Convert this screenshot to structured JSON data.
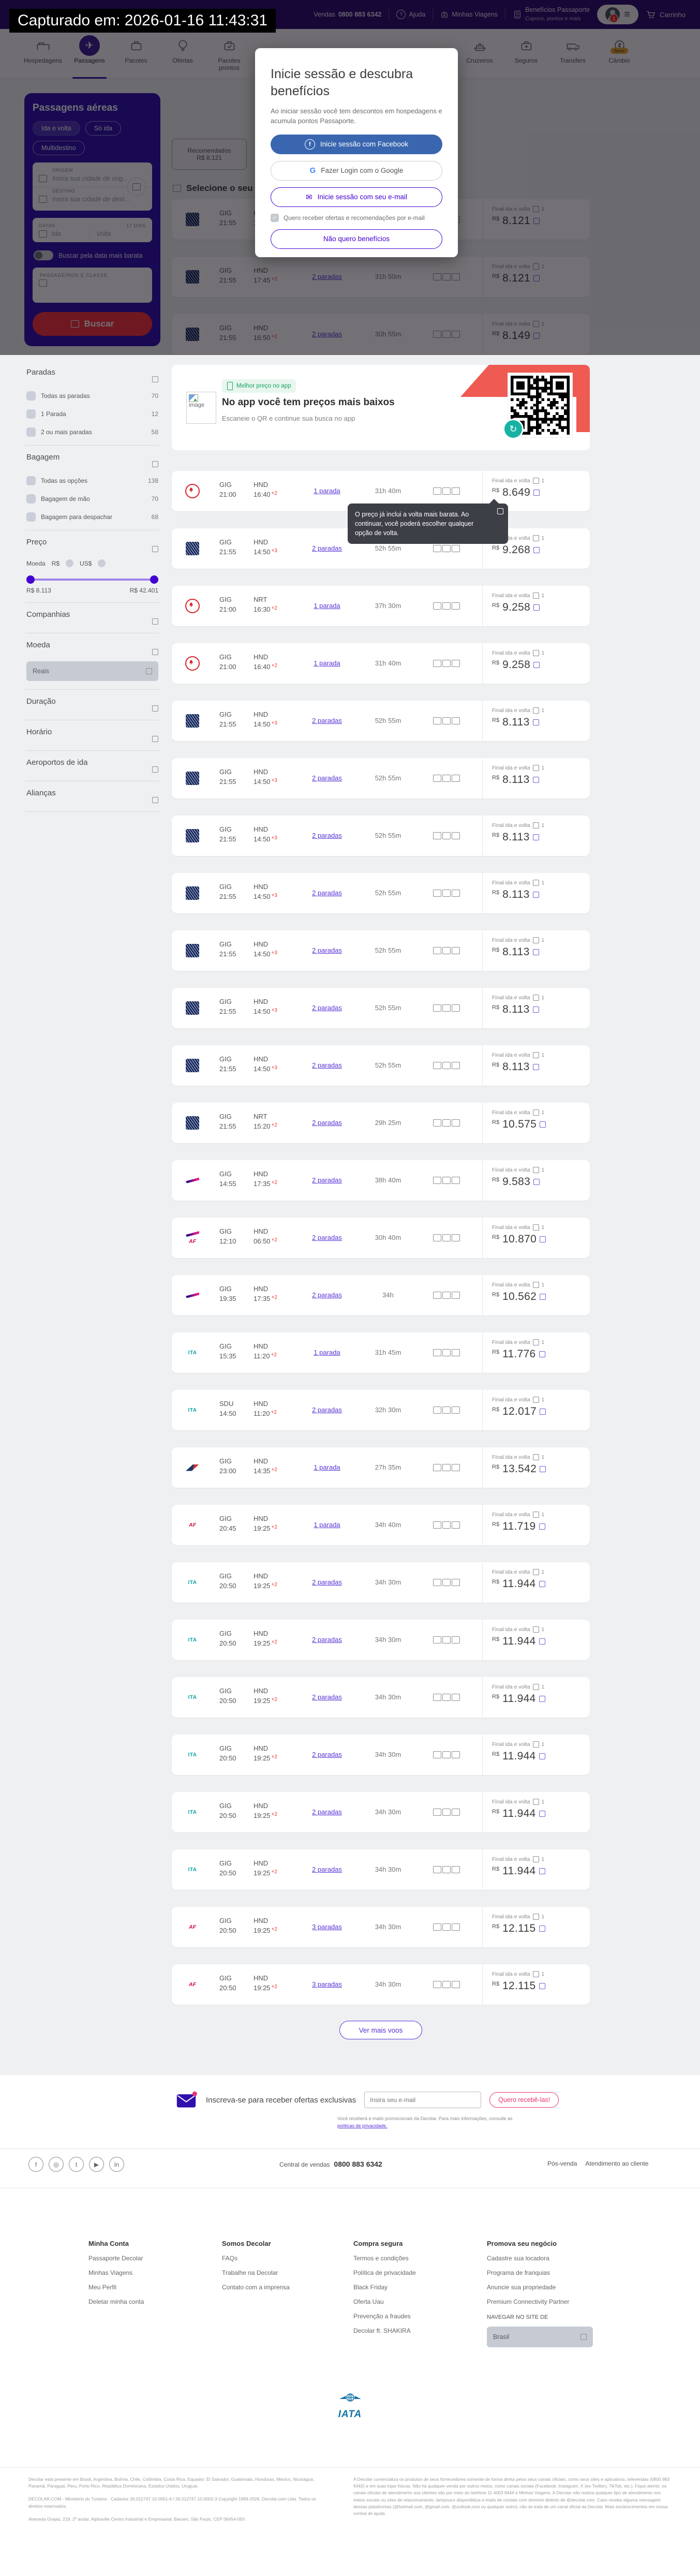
{
  "theme": {
    "purple": "#4300d2",
    "panel_indigo": "#2f0fae",
    "red": "#f5323c",
    "link": "#5a33d6",
    "facebook_blue": "#3a66b0",
    "pink": "#e9326e",
    "green": "#18a560",
    "ribbon_red": "#ef5a52",
    "teal": "#16b3a4"
  },
  "icons": {
    "plane_glyph": "✈",
    "refresh_glyph": "↻",
    "hamburger_glyph": "≡",
    "question_glyph": "?",
    "check_glyph": "✓"
  },
  "capture_banner": {
    "text": "Capturado em: 2026-01-16 11:43:31"
  },
  "topbar": {
    "logo": "decolar",
    "phone_label": "Vendas",
    "phone_number": "0800 883 6342",
    "help": "Ajuda",
    "my_trips": "Minhas Viagens",
    "passport_line1": "Benefícios Passaporte",
    "passport_line2": "Cupons, pontos e mais",
    "account_badge": "1",
    "cart": "Carrinho"
  },
  "nav": {
    "primary": [
      {
        "label": "Hospedagens",
        "icon": "bed",
        "active": false
      },
      {
        "label": "Passagens",
        "icon": "plane",
        "active": true
      },
      {
        "label": "Pacotes",
        "icon": "suitcase",
        "active": false
      },
      {
        "label": "Ofertas",
        "icon": "balloon",
        "active": false
      },
      {
        "label": "Pacotes prontos",
        "icon": "suitcase-check",
        "active": false
      }
    ],
    "secondary": [
      {
        "label": "Cruzeiros",
        "icon": "ship",
        "active": false
      },
      {
        "label": "Seguros",
        "icon": "case-plus",
        "active": false
      },
      {
        "label": "Transfers",
        "icon": "van",
        "active": false
      },
      {
        "label": "Câmbio",
        "icon": "coin",
        "active": false,
        "badge": "Novo"
      }
    ]
  },
  "search_panel": {
    "title": "Passagens aéreas",
    "trip_types": [
      {
        "label": "Ida e volta",
        "selected": true
      },
      {
        "label": "Só ida",
        "selected": false
      },
      {
        "label": "Multidestino",
        "selected": false
      }
    ],
    "origin_label": "ORIGEM",
    "origin_placeholder": "Insira sua cidade de orig...",
    "destination_label": "DESTINO",
    "destination_placeholder": "Insira sua cidade de dest...",
    "dates_label": "DATAS",
    "dates_badge": "17 DIAS",
    "date_out_placeholder": "Ida",
    "date_back_placeholder": "Volta",
    "cheapest_toggle_label": "Buscar pela data mais barata",
    "passengers_label": "PASSAGEIROS E CLASSE",
    "search_button": "Buscar"
  },
  "filters": {
    "sections": [
      {
        "type": "checks",
        "title": "Paradas",
        "items": [
          {
            "label": "Todas as paradas",
            "count": "70"
          },
          {
            "label": "1 Parada",
            "count": "12"
          },
          {
            "label": "2 ou mais paradas",
            "count": "58"
          }
        ]
      },
      {
        "type": "checks",
        "title": "Bagagem",
        "items": [
          {
            "label": "Todas as opções",
            "count": "138"
          },
          {
            "label": "Bagagem de mão",
            "count": "70"
          },
          {
            "label": "Bagagem para despachar",
            "count": "68"
          }
        ]
      },
      {
        "type": "price",
        "title": "Preço",
        "currency_label": "Moeda",
        "currency_options": [
          "R$",
          "US$"
        ],
        "min_label": "R$ 8.113",
        "max_label": "R$ 42.401"
      },
      {
        "type": "collapsed",
        "title": "Companhias"
      },
      {
        "type": "select",
        "title": "Moeda",
        "value": "Reais"
      },
      {
        "type": "collapsed",
        "title": "Duração"
      },
      {
        "type": "collapsed",
        "title": "Horário"
      },
      {
        "type": "collapsed",
        "title": "Aeroportos de ida"
      },
      {
        "type": "collapsed",
        "title": "Alianças"
      }
    ]
  },
  "results": {
    "tab": {
      "label": "Recomendados",
      "price": "R$ 8.121"
    },
    "list_header": "Selecione o seu voo de ida",
    "price_col_label": "Final ida e volta",
    "price_col_count": "1",
    "currency": "R$",
    "dimmed_cards": [
      {
        "airline": "ANA",
        "logo": "ana",
        "from": "GIG",
        "dep": "21:55",
        "to": "HND",
        "arr": "17:45",
        "plus": "+2",
        "stops": "2 paradas",
        "duration": "31h 50m",
        "price": "8.121"
      },
      {
        "airline": "ANA",
        "logo": "ana",
        "from": "GIG",
        "dep": "21:55",
        "to": "HND",
        "arr": "17:45",
        "plus": "+2",
        "stops": "2 paradas",
        "duration": "31h 50m",
        "price": "8.121"
      },
      {
        "airline": "ANA",
        "logo": "ana",
        "from": "GIG",
        "dep": "21:55",
        "to": "HND",
        "arr": "16:50",
        "plus": "+2",
        "stops": "2 paradas",
        "duration": "30h 55m",
        "price": "8.149"
      }
    ],
    "app_banner": {
      "badge": "Melhor preço no app",
      "title": "No app você tem preços mais baixos",
      "subtitle": "Escaneie o QR e continue sua busca no app",
      "broken_image_label": "image"
    },
    "tooltip": {
      "text": "O preço já inclui a volta mais barata. Ao continuar, você poderá escolher qualquer opção de volta."
    },
    "cards": [
      {
        "airline": "Air Canada",
        "logo": "aircanada",
        "from": "GIG",
        "dep": "21:00",
        "to": "HND",
        "arr": "16:40",
        "plus": "+2",
        "stops": "1 parada",
        "duration": "31h 40m",
        "price": "8.649"
      },
      {
        "airline": "ANA",
        "logo": "ana",
        "from": "GIG",
        "dep": "21:55",
        "to": "HND",
        "arr": "14:50",
        "plus": "+3",
        "stops": "2 paradas",
        "duration": "52h 55m",
        "price": "9.268"
      },
      {
        "airline": "Air Canada",
        "logo": "aircanada",
        "from": "GIG",
        "dep": "21:00",
        "to": "NRT",
        "arr": "16:30",
        "plus": "+2",
        "stops": "1 parada",
        "duration": "37h 30m",
        "price": "9.258"
      },
      {
        "airline": "Air Canada",
        "logo": "aircanada",
        "from": "GIG",
        "dep": "21:00",
        "to": "HND",
        "arr": "16:40",
        "plus": "+2",
        "stops": "1 parada",
        "duration": "31h 40m",
        "price": "9.258"
      },
      {
        "airline": "ANA",
        "logo": "ana",
        "from": "GIG",
        "dep": "21:55",
        "to": "HND",
        "arr": "14:50",
        "plus": "+3",
        "stops": "2 paradas",
        "duration": "52h 55m",
        "price": "8.113"
      },
      {
        "airline": "ANA",
        "logo": "ana",
        "from": "GIG",
        "dep": "21:55",
        "to": "HND",
        "arr": "14:50",
        "plus": "+3",
        "stops": "2 paradas",
        "duration": "52h 55m",
        "price": "8.113"
      },
      {
        "airline": "ANA",
        "logo": "ana",
        "from": "GIG",
        "dep": "21:55",
        "to": "HND",
        "arr": "14:50",
        "plus": "+3",
        "stops": "2 paradas",
        "duration": "52h 55m",
        "price": "8.113"
      },
      {
        "airline": "ANA",
        "logo": "ana",
        "from": "GIG",
        "dep": "21:55",
        "to": "HND",
        "arr": "14:50",
        "plus": "+3",
        "stops": "2 paradas",
        "duration": "52h 55m",
        "price": "8.113"
      },
      {
        "airline": "ANA",
        "logo": "ana",
        "from": "GIG",
        "dep": "21:55",
        "to": "HND",
        "arr": "14:50",
        "plus": "+3",
        "stops": "2 paradas",
        "duration": "52h 55m",
        "price": "8.113"
      },
      {
        "airline": "ANA",
        "logo": "ana",
        "from": "GIG",
        "dep": "21:55",
        "to": "HND",
        "arr": "14:50",
        "plus": "+3",
        "stops": "2 paradas",
        "duration": "52h 55m",
        "price": "8.113"
      },
      {
        "airline": "ANA",
        "logo": "ana",
        "from": "GIG",
        "dep": "21:55",
        "to": "HND",
        "arr": "14:50",
        "plus": "+3",
        "stops": "2 paradas",
        "duration": "52h 55m",
        "price": "8.113"
      },
      {
        "airline": "ANA",
        "logo": "ana",
        "from": "GIG",
        "dep": "21:55",
        "to": "NRT",
        "arr": "15:20",
        "plus": "+2",
        "stops": "2 paradas",
        "duration": "29h 25m",
        "price": "10.575"
      },
      {
        "airline": "LATAM",
        "logo": "latam",
        "from": "GIG",
        "dep": "14:55",
        "to": "HND",
        "arr": "17:35",
        "plus": "+2",
        "stops": "2 paradas",
        "duration": "38h 40m",
        "price": "9.583"
      },
      {
        "airline": "LATAM + Air France",
        "logo": "latam-af",
        "from": "GIG",
        "dep": "12:10",
        "to": "HND",
        "arr": "06:50",
        "plus": "+2",
        "stops": "2 paradas",
        "duration": "30h 40m",
        "price": "10.870"
      },
      {
        "airline": "LATAM",
        "logo": "latam",
        "from": "GIG",
        "dep": "19:35",
        "to": "HND",
        "arr": "17:35",
        "plus": "+2",
        "stops": "2 paradas",
        "duration": "34h",
        "price": "10.562"
      },
      {
        "airline": "ITA Airways",
        "logo": "ita",
        "logo_text": "ITA",
        "from": "GIG",
        "dep": "15:35",
        "to": "HND",
        "arr": "11:20",
        "plus": "+2",
        "stops": "1 parada",
        "duration": "31h 45m",
        "price": "11.776"
      },
      {
        "airline": "ITA Airways",
        "logo": "ita",
        "logo_text": "ITA",
        "from": "SDU",
        "dep": "14:50",
        "to": "HND",
        "arr": "11:20",
        "plus": "+2",
        "stops": "2 paradas",
        "duration": "32h 30m",
        "price": "12.017"
      },
      {
        "airline": "American Airlines",
        "logo": "aa",
        "from": "GIG",
        "dep": "23:00",
        "to": "HND",
        "arr": "14:35",
        "plus": "+2",
        "stops": "1 parada",
        "duration": "27h 35m",
        "price": "13.542"
      },
      {
        "airline": "Air France",
        "logo": "af",
        "logo_text": "AF",
        "from": "GIG",
        "dep": "20:45",
        "to": "HND",
        "arr": "19:25",
        "plus": "+2",
        "stops": "1 parada",
        "duration": "34h 40m",
        "price": "11.719"
      },
      {
        "airline": "ITA Airways",
        "logo": "ita",
        "logo_text": "ITA",
        "from": "GIG",
        "dep": "20:50",
        "to": "HND",
        "arr": "19:25",
        "plus": "+2",
        "stops": "2 paradas",
        "duration": "34h 30m",
        "price": "11.944"
      },
      {
        "airline": "ITA Airways",
        "logo": "ita",
        "logo_text": "ITA",
        "from": "GIG",
        "dep": "20:50",
        "to": "HND",
        "arr": "19:25",
        "plus": "+2",
        "stops": "2 paradas",
        "duration": "34h 30m",
        "price": "11.944"
      },
      {
        "airline": "ITA Airways",
        "logo": "ita",
        "logo_text": "ITA",
        "from": "GIG",
        "dep": "20:50",
        "to": "HND",
        "arr": "19:25",
        "plus": "+2",
        "stops": "2 paradas",
        "duration": "34h 30m",
        "price": "11.944"
      },
      {
        "airline": "ITA Airways",
        "logo": "ita",
        "logo_text": "ITA",
        "from": "GIG",
        "dep": "20:50",
        "to": "HND",
        "arr": "19:25",
        "plus": "+2",
        "stops": "2 paradas",
        "duration": "34h 30m",
        "price": "11.944"
      },
      {
        "airline": "ITA Airways",
        "logo": "ita",
        "logo_text": "ITA",
        "from": "GIG",
        "dep": "20:50",
        "to": "HND",
        "arr": "19:25",
        "plus": "+2",
        "stops": "2 paradas",
        "duration": "34h 30m",
        "price": "11.944"
      },
      {
        "airline": "ITA Airways",
        "logo": "ita",
        "logo_text": "ITA",
        "from": "GIG",
        "dep": "20:50",
        "to": "HND",
        "arr": "19:25",
        "plus": "+2",
        "stops": "2 paradas",
        "duration": "34h 30m",
        "price": "11.944"
      },
      {
        "airline": "Air France",
        "logo": "af",
        "logo_text": "AF",
        "from": "GIG",
        "dep": "20:50",
        "to": "HND",
        "arr": "19:25",
        "plus": "+2",
        "stops": "3 paradas",
        "duration": "34h 30m",
        "price": "12.115"
      },
      {
        "airline": "Air France",
        "logo": "af",
        "logo_text": "AF",
        "from": "GIG",
        "dep": "20:50",
        "to": "HND",
        "arr": "19:25",
        "plus": "+2",
        "stops": "3 paradas",
        "duration": "34h 30m",
        "price": "12.115"
      }
    ],
    "more_button": "Ver mais voos"
  },
  "modal": {
    "title": "Inicie sessão e descubra benefícios",
    "body": "Ao iniciar sessão você tem descontos em hospedagens e acumula pontos Passaporte.",
    "facebook": "Inicie sessão com Facebook",
    "google": "Fazer Login com o Google",
    "email": "Inicie sessão com seu e-mail",
    "newsletter_optin": "Quero receber ofertas e recomendações por e-mail",
    "decline": "Não quero benefícios"
  },
  "newsletter": {
    "title": "Inscreva-se para receber ofertas exclusivas",
    "placeholder": "Insira seu e-mail",
    "button": "Quero recebê-las!",
    "disclaimer": "Você receberá e-mails promocionais da Decolar. Para mais informações, consulte as",
    "disclaimer_link": "políticas de privacidade."
  },
  "contact": {
    "sales_label": "Central de vendas",
    "sales_phone": "0800 883 6342",
    "after_label": "Pós-venda",
    "after_link": "Atendimento ao cliente",
    "socials": [
      {
        "name": "facebook",
        "glyph": "f"
      },
      {
        "name": "instagram",
        "glyph": "◎"
      },
      {
        "name": "twitter",
        "glyph": "t"
      },
      {
        "name": "youtube",
        "glyph": "▶"
      },
      {
        "name": "linkedin",
        "glyph": "in"
      }
    ]
  },
  "footer": {
    "columns": [
      {
        "title": "Minha Conta",
        "links": [
          "Passaporte Decolar",
          "Minhas Viagens",
          "Meu Perfil",
          "Deletar minha conta"
        ]
      },
      {
        "title": "Somos Decolar",
        "links": [
          "FAQs",
          "Trabalhe na Decolar",
          "Contato com a imprensa"
        ]
      },
      {
        "title": "Compra segura",
        "links": [
          "Termos e condições",
          "Política de privacidade",
          "Black Friday",
          "Oferta Uau",
          "Prevenção a fraudes",
          "Decolar ft. SHAKIRA"
        ]
      },
      {
        "title": "Promova seu negócio",
        "links": [
          "Cadastre sua locadora",
          "Programa de franquias",
          "Anuncie sua propriedade",
          "Premium Connectivity Partner"
        ]
      }
    ],
    "region_label": "NAVEGAR NO SITE DE",
    "region_value": "Brasil",
    "iata": "IATA",
    "legal_countries": "Decolar está presente em Brasil, Argentina, Bolívia, Chile, Colômbia, Costa Rica, Equador, El Salvador, Guatemala, Honduras, México, Nicarágua, Panamá, Paraguai, Peru, Porto Rico, República Dominicana, Estados Unidos, Uruguai.",
    "legal_company": "DECOLAR.COM - Ministério do Turismo - Cadastur 26.012747.10.0001-6 / 26.012747.10.0002-3 Copyright 1999-2026. Decolar.com Ltda. Todos os direitos reservados.",
    "legal_address": "Alameda Grajaú, 219, 2º andar, Alphaville Centro Industrial e Empresarial, Barueri, São Paulo, CEP 06454-050",
    "legal_right": "A Decolar comercializa os produtos de seus fornecedores somente de forma direta pelos seus canais oficiais, como seus sites e aplicativos, televendas (0800 883 6342) e em suas lojas físicas. Não há qualquer venda por outros meios, como canais sociais (Facebook, Instagram, X (ex-Twitter), TikTok, etc.). Fique atento: os canais oficiais de atendimento aos clientes são por meio do telefone 11 4003 9444 e Minhas Viagens. A Decolar não realiza qualquer tipo de atendimento nos meios sociais ou sites de relacionamento, tampouco disponibiliza e-mails de contato com domínio distinto de @decolar.com. Caso receba alguma mensagem dessas plataformas (@hotmail.com, @gmail.com, @outlook.com ou qualquer outro), não se trata de um canal oficial da Decolar. Mais esclarecimentos em nossa central de ajuda."
  }
}
